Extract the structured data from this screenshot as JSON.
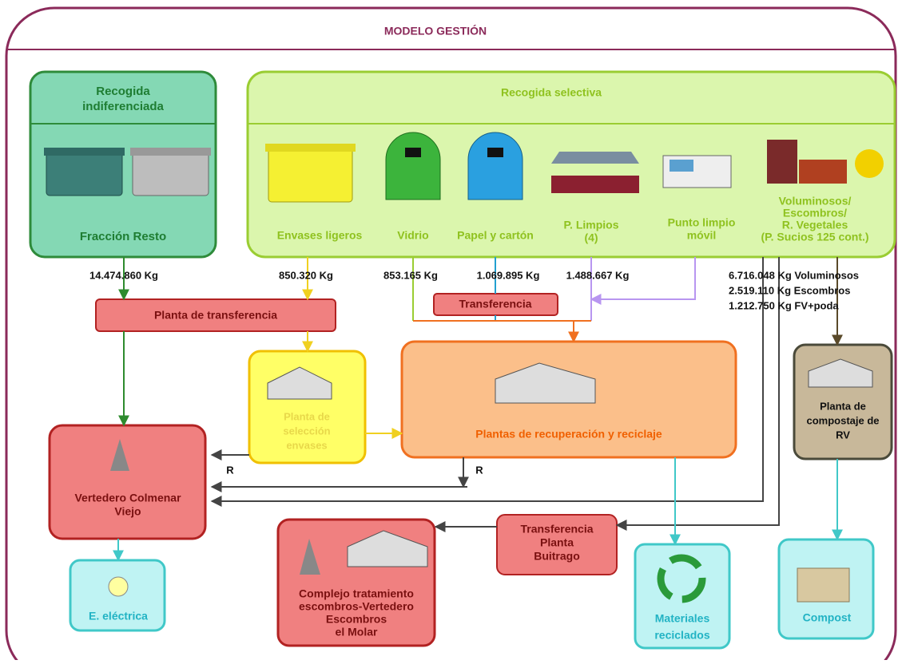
{
  "header": {
    "title": "MODELO GESTIÓN"
  },
  "nodes": {
    "indiferenciada": {
      "title": [
        "Recogida",
        "indiferenciada"
      ],
      "label": "Fracción Resto"
    },
    "selectiva": {
      "title": "Recogida selectiva",
      "items": [
        "Envases ligeros",
        "Vidrio",
        "Papel y cartón",
        [
          "P. Limpios",
          "(4)"
        ],
        [
          "Punto limpio",
          "móvil"
        ],
        [
          "Voluminosos/",
          "Escombros/",
          "R. Vegetales",
          "(P. Sucios 125 cont.)"
        ]
      ]
    },
    "planta_transferencia": "Planta de transferencia",
    "transferencia": "Transferencia",
    "seleccion_envases": [
      "Planta de",
      "selección",
      "envases"
    ],
    "recuperacion": "Plantas de recuperación y reciclaje",
    "compostaje": [
      "Planta de",
      "compostaje de",
      "RV"
    ],
    "vertedero": [
      "Vertedero Colmenar",
      "Viejo"
    ],
    "rechazo": [
      "R",
      "R"
    ],
    "buitrago": [
      "Transferencia",
      "Planta",
      "Buitrago"
    ],
    "complejo": [
      "Complejo tratamiento",
      "escombros-Vertedero",
      "Escombros",
      "el Molar"
    ],
    "electrica": "E. eléctrica",
    "materiales": [
      "Materiales",
      "reciclados"
    ],
    "compost": "Compost"
  },
  "flows": [
    "14.474.860 Kg",
    "850.320 Kg",
    "853.165 Kg",
    "1.069.895 Kg",
    "1.488.667 Kg",
    "6.716.048 Kg Voluminosos",
    "2.519.110 Kg Escombros",
    "1.212.750 Kg FV+poda"
  ]
}
